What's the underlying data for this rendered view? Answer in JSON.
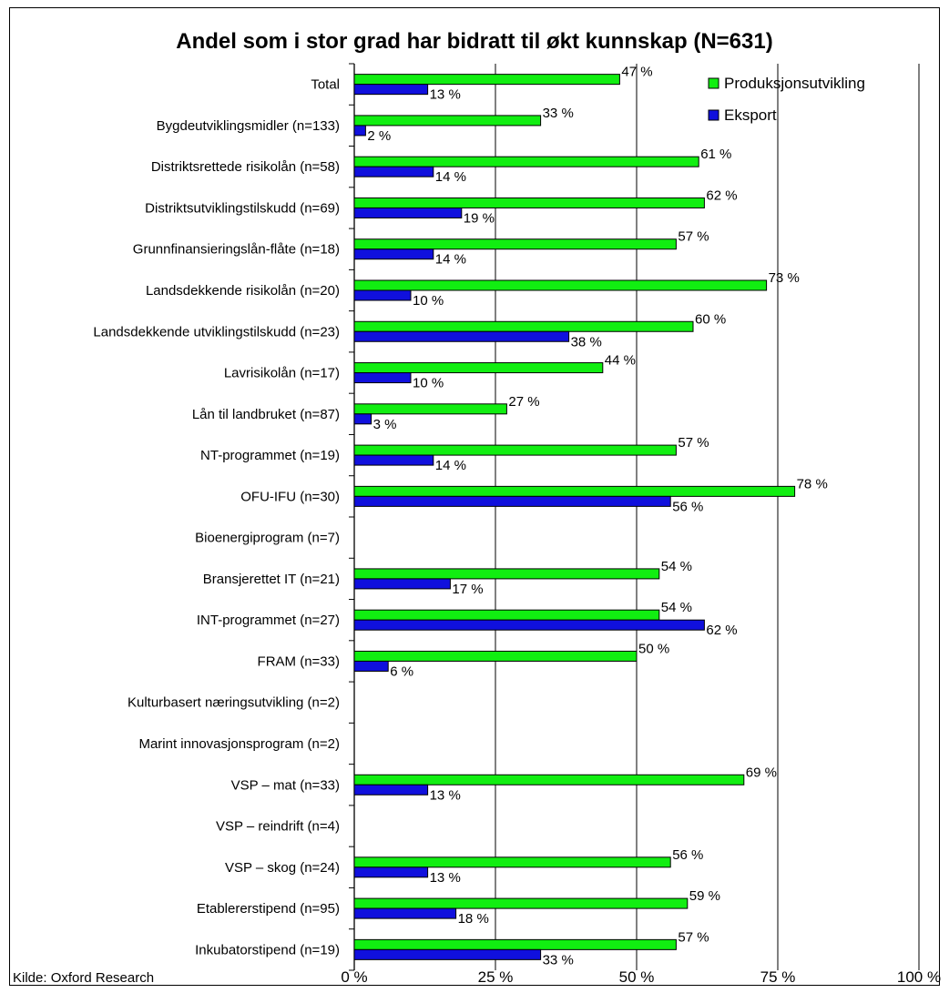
{
  "chart_data": {
    "type": "bar",
    "orientation": "horizontal",
    "title": "Andel som i stor grad har bidratt til økt kunnskap (N=631)",
    "categories": [
      "Total",
      "Bygdeutviklingsmidler (n=133)",
      "Distriktsrettede risikolån (n=58)",
      "Distriktsutviklingstilskudd (n=69)",
      "Grunnfinansieringslån-flåte (n=18)",
      "Landsdekkende risikolån (n=20)",
      "Landsdekkende utviklingstilskudd (n=23)",
      "Lavrisikolån (n=17)",
      "Lån til landbruket (n=87)",
      "NT-programmet (n=19)",
      "OFU-IFU (n=30)",
      "Bioenergiprogram (n=7)",
      "Bransjerettet IT (n=21)",
      "INT-programmet (n=27)",
      "FRAM (n=33)",
      "Kulturbasert næringsutvikling (n=2)",
      "Marint innovasjonsprogram (n=2)",
      "VSP – mat (n=33)",
      "VSP – reindrift (n=4)",
      "VSP – skog (n=24)",
      "Etablererstipend (n=95)",
      "Inkubatorstipend (n=19)"
    ],
    "series": [
      {
        "name": "Produksjonsutvikling",
        "color": "#11EE11",
        "values": [
          47,
          33,
          61,
          62,
          57,
          73,
          60,
          44,
          27,
          57,
          78,
          null,
          54,
          54,
          50,
          null,
          null,
          69,
          null,
          56,
          59,
          57
        ],
        "labels": [
          "47 %",
          "33 %",
          "61 %",
          "62 %",
          "57 %",
          "73 %",
          "60 %",
          "44 %",
          "27 %",
          "57 %",
          "78 %",
          "",
          "54 %",
          "54 %",
          "50 %",
          "",
          "",
          "69 %",
          "",
          "56 %",
          "59 %",
          "57 %"
        ]
      },
      {
        "name": "Eksport",
        "color": "#1010DD",
        "values": [
          13,
          2,
          14,
          19,
          14,
          10,
          38,
          10,
          3,
          14,
          56,
          null,
          17,
          62,
          6,
          null,
          null,
          13,
          null,
          13,
          18,
          33
        ],
        "labels": [
          "13 %",
          "2 %",
          "14 %",
          "19 %",
          "14 %",
          "10 %",
          "38 %",
          "10 %",
          "3 %",
          "14 %",
          "56 %",
          "",
          "17 %",
          "62 %",
          "6 %",
          "",
          "",
          "13 %",
          "",
          "13 %",
          "18 %",
          "33 %"
        ]
      }
    ],
    "xlim": [
      0,
      100
    ],
    "xticks": [
      0,
      25,
      50,
      75,
      100
    ],
    "xtick_labels": [
      "0 %",
      "25 %",
      "50 %",
      "75 %",
      "100 %"
    ],
    "grid": "vertical",
    "legend_position": "top-right"
  },
  "source_note": "Kilde: Oxford Research"
}
